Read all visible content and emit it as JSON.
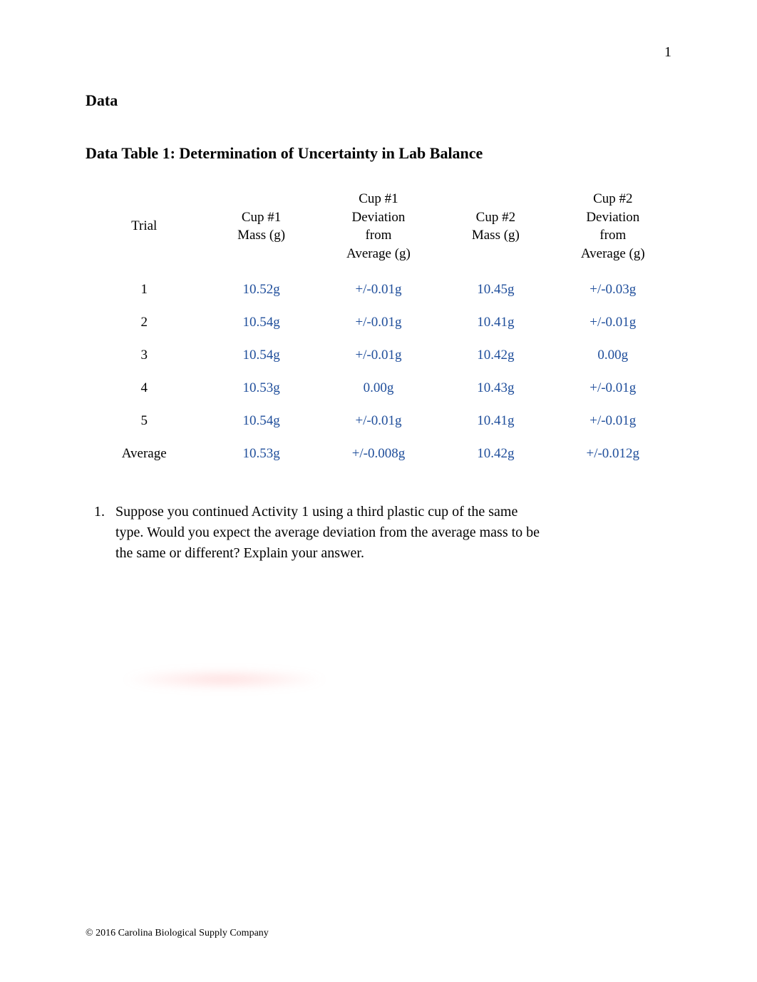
{
  "page_number": "1",
  "section_heading": "Data",
  "table_title": "Data Table 1: Determination of Uncertainty in Lab Balance",
  "colors": {
    "text": "#000000",
    "data_value": "#1f4e9b",
    "background": "#ffffff"
  },
  "typography": {
    "body_family": "Times New Roman",
    "heading_fontsize_pt": 17,
    "body_fontsize_pt": 15,
    "footer_fontsize_pt": 10
  },
  "table": {
    "type": "table",
    "columns": [
      {
        "label": "Trial",
        "align": "center"
      },
      {
        "label": "Cup #1\nMass (g)",
        "align": "center"
      },
      {
        "label": "Cup #1\nDeviation\nfrom\nAverage (g)",
        "align": "center"
      },
      {
        "label": "Cup #2\nMass (g)",
        "align": "center"
      },
      {
        "label": "Cup #2\nDeviation\nfrom\nAverage (g)",
        "align": "center"
      }
    ],
    "rows": [
      {
        "label": "1",
        "c1_mass": "10.52g",
        "c1_dev": "+/-0.01g",
        "c2_mass": "10.45g",
        "c2_dev": "+/-0.03g"
      },
      {
        "label": "2",
        "c1_mass": "10.54g",
        "c1_dev": "+/-0.01g",
        "c2_mass": "10.41g",
        "c2_dev": "+/-0.01g"
      },
      {
        "label": "3",
        "c1_mass": "10.54g",
        "c1_dev": "+/-0.01g",
        "c2_mass": "10.42g",
        "c2_dev": "0.00g"
      },
      {
        "label": "4",
        "c1_mass": "10.53g",
        "c1_dev": "0.00g",
        "c2_mass": "10.43g",
        "c2_dev": "+/-0.01g"
      },
      {
        "label": "5",
        "c1_mass": "10.54g",
        "c1_dev": "+/-0.01g",
        "c2_mass": "10.41g",
        "c2_dev": "+/-0.01g"
      },
      {
        "label": "Average",
        "c1_mass": "10.53g",
        "c1_dev": "+/-0.008g",
        "c2_mass": "10.42g",
        "c2_dev": "+/-0.012g"
      }
    ]
  },
  "question": {
    "number": "1.",
    "text": "Suppose you continued Activity 1 using a third plastic cup of the same type. Would you expect the average deviation from the average mass to be the same or different? Explain your answer."
  },
  "footer": "© 2016 Carolina Biological Supply Company"
}
